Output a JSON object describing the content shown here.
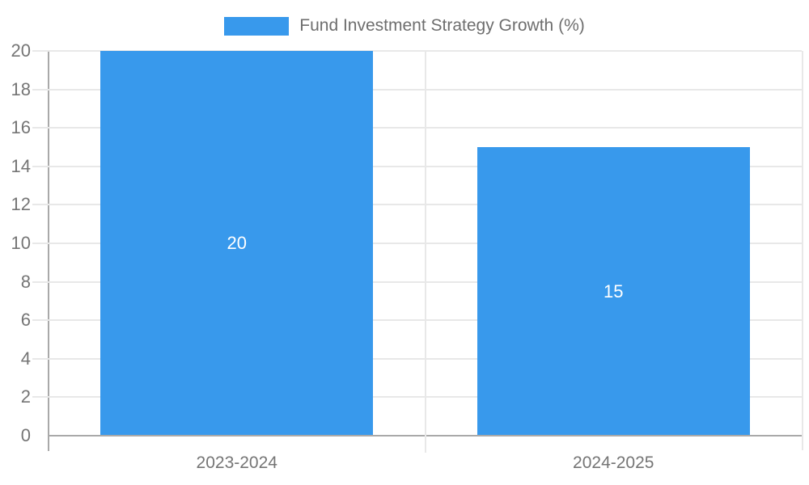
{
  "chart_data": {
    "type": "bar",
    "title": "",
    "legend": {
      "label": "Fund Investment Strategy Growth (%)",
      "position": "top",
      "swatch_color": "#3899ec"
    },
    "categories": [
      "2023-2024",
      "2024-2025"
    ],
    "values": [
      20,
      15
    ],
    "bar_labels": [
      "20",
      "15"
    ],
    "xlabel": "",
    "ylabel": "",
    "ylim": [
      0,
      20
    ],
    "yticks": [
      0,
      2,
      4,
      6,
      8,
      10,
      12,
      14,
      16,
      18,
      20
    ],
    "grid": true,
    "colors": {
      "bar": "#3899ec",
      "value_label": "#ffffff",
      "axis_text": "#757575",
      "legend_text": "#6e6e6e",
      "gridline": "#e8e8e8",
      "axis_line": "#a9a9a9"
    }
  }
}
